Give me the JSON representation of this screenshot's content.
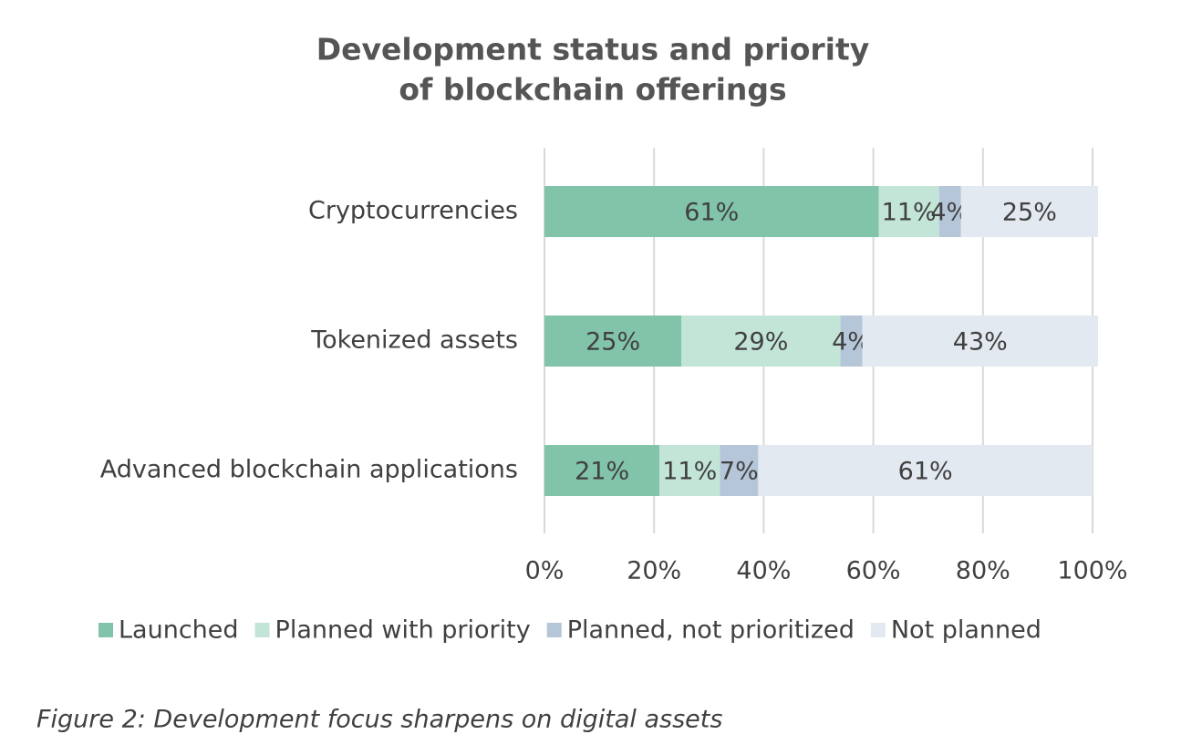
{
  "chart_data": {
    "type": "stacked-barh",
    "title": [
      "Development status and priority",
      "of blockchain offerings"
    ],
    "categories": [
      "Cryptocurrencies",
      "Tokenized assets",
      "Advanced blockchain applications"
    ],
    "series": [
      {
        "name": "Launched",
        "color": "#82c4aa",
        "values": [
          61,
          25,
          21
        ],
        "value_labels": [
          "61%",
          "25%",
          "21%"
        ]
      },
      {
        "name": "Planned with priority",
        "color": "#c2e5d8",
        "values": [
          11,
          29,
          11
        ],
        "value_labels": [
          "11%",
          "29%",
          "11%"
        ]
      },
      {
        "name": "Planned, not prioritized",
        "color": "#b5c6d9",
        "values": [
          4,
          4,
          7
        ],
        "value_labels": [
          "4%",
          "4%",
          "7%"
        ]
      },
      {
        "name": "Not planned",
        "color": "#e3e9f0",
        "values": [
          25,
          43,
          61
        ],
        "value_labels": [
          "25%",
          "43%",
          "61%"
        ]
      }
    ],
    "xlim": [
      0,
      100
    ],
    "xticks": [
      {
        "value": 0,
        "label": "0%"
      },
      {
        "value": 20,
        "label": "20%"
      },
      {
        "value": 40,
        "label": "40%"
      },
      {
        "value": 60,
        "label": "60%"
      },
      {
        "value": 80,
        "label": "80%"
      },
      {
        "value": 100,
        "label": "100%"
      }
    ],
    "grid": true,
    "legend": "bottom",
    "caption": "Figure 2: Development focus sharpens on digital assets"
  }
}
